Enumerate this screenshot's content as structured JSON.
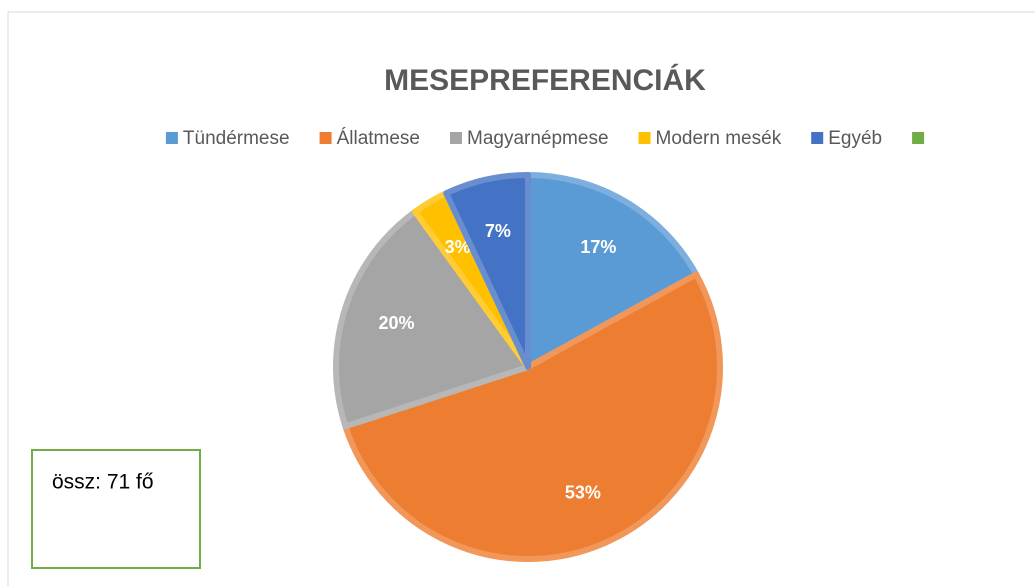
{
  "chart_data": {
    "type": "pie",
    "title": "MESEPREFERENCIÁK",
    "categories": [
      "Tündérmese",
      "Állatmese",
      "Magyarnépmese",
      "Modern mesék",
      "Egyéb",
      null
    ],
    "values": [
      17,
      53,
      20,
      3,
      7,
      0
    ],
    "value_labels": [
      "17%",
      "53%",
      "20%",
      "3%",
      "7%",
      null
    ],
    "colors": [
      "#5b9bd5",
      "#ed7d31",
      "#a5a5a5",
      "#ffc000",
      "#4472c4",
      "#70ad47"
    ],
    "legend": "top",
    "annotation": "össz: 71 fő"
  }
}
